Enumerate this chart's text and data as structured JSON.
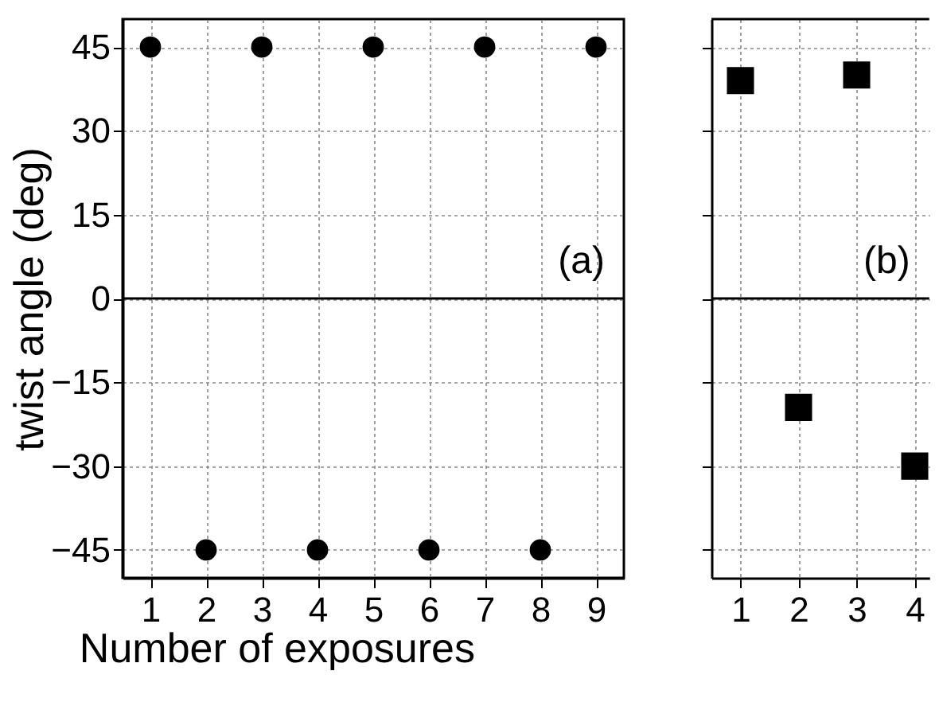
{
  "chart_data": [
    {
      "type": "scatter",
      "xlabel": "Number of exposures",
      "ylabel": "twist angle (deg)",
      "x": [
        1,
        2,
        3,
        4,
        5,
        6,
        7,
        8,
        9
      ],
      "series": [
        {
          "color": "#000000",
          "values": [
            45,
            -45,
            45,
            -45,
            45,
            -45,
            45,
            -45,
            45
          ]
        }
      ],
      "xlim": [
        0.5,
        9.5
      ],
      "xticks": [
        1,
        2,
        3,
        4,
        5,
        6,
        7,
        8,
        9
      ],
      "ylim": [
        -50,
        50
      ],
      "yticks": [
        -45,
        -30,
        -15,
        0,
        15,
        30,
        45
      ],
      "grid": true,
      "marker": "circle",
      "ref_lines": [
        {
          "axis": "y",
          "value": 0
        }
      ],
      "annotations": [
        "(a)"
      ]
    },
    {
      "type": "scatter",
      "x": [
        1,
        2,
        3,
        4
      ],
      "series": [
        {
          "color": "#000000",
          "values": [
            39,
            -19.5,
            40,
            -30
          ]
        }
      ],
      "xlim": [
        0.5,
        4.25
      ],
      "xticks": [
        1,
        2,
        3,
        4
      ],
      "ylim": [
        -50,
        50
      ],
      "yticks": [
        -45,
        -30,
        -15,
        0,
        15,
        30,
        45
      ],
      "tick_labels": "x",
      "grid": true,
      "marker": "square",
      "ref_lines": [
        {
          "axis": "y",
          "value": 0
        }
      ],
      "annotations": [
        "(b)"
      ]
    }
  ]
}
